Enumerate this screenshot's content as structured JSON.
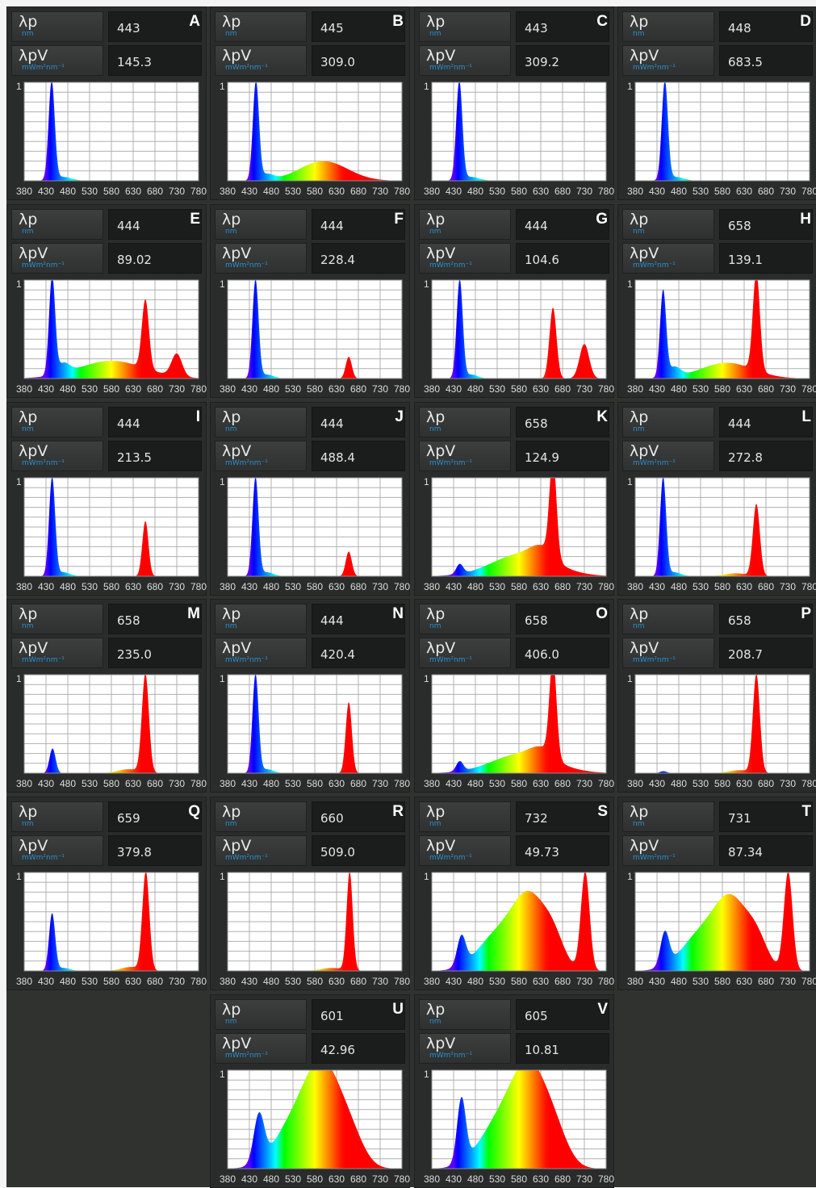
{
  "labels": {
    "lambda_p": "λp",
    "lambda_p_unit": "nm",
    "lambda_pv": "λpV",
    "lambda_pv_unit": "mWm²nm⁻¹"
  },
  "colors": {
    "background": "#303230",
    "panel": "#2a2c2b",
    "plot_background": "#ffffff",
    "grid": "#b0b0b0",
    "unit_text": "#2a8fd0"
  },
  "chart_data": {
    "type": "area",
    "y_tick_label": "1",
    "ylim": [
      0,
      1
    ],
    "xlim": [
      380,
      780
    ],
    "x_ticks": [
      "380",
      "430",
      "480",
      "530",
      "580",
      "630",
      "680",
      "730",
      "780"
    ],
    "panels": [
      {
        "label": "A",
        "lambda_p": "443",
        "lambda_pv": "145.3",
        "peaks": [
          {
            "c": 443,
            "w": 7,
            "h": 1.0
          },
          {
            "c": 468,
            "w": 20,
            "h": 0.04
          }
        ]
      },
      {
        "label": "B",
        "lambda_p": "445",
        "lambda_pv": "309.0",
        "peaks": [
          {
            "c": 445,
            "w": 7,
            "h": 1.0
          },
          {
            "c": 470,
            "w": 15,
            "h": 0.06
          },
          {
            "c": 600,
            "w": 55,
            "h": 0.2
          }
        ]
      },
      {
        "label": "C",
        "lambda_p": "443",
        "lambda_pv": "309.2",
        "peaks": [
          {
            "c": 443,
            "w": 7,
            "h": 1.0
          },
          {
            "c": 468,
            "w": 20,
            "h": 0.04
          }
        ]
      },
      {
        "label": "D",
        "lambda_p": "448",
        "lambda_pv": "683.5",
        "peaks": [
          {
            "c": 448,
            "w": 7,
            "h": 1.0
          },
          {
            "c": 470,
            "w": 20,
            "h": 0.04
          }
        ]
      },
      {
        "label": "E",
        "lambda_p": "444",
        "lambda_pv": "89.02",
        "peaks": [
          {
            "c": 444,
            "w": 7,
            "h": 1.0
          },
          {
            "c": 470,
            "w": 14,
            "h": 0.1
          },
          {
            "c": 580,
            "w": 75,
            "h": 0.18
          },
          {
            "c": 658,
            "w": 8,
            "h": 0.7
          },
          {
            "c": 730,
            "w": 12,
            "h": 0.23
          }
        ]
      },
      {
        "label": "F",
        "lambda_p": "444",
        "lambda_pv": "228.4",
        "peaks": [
          {
            "c": 444,
            "w": 7,
            "h": 1.0
          },
          {
            "c": 470,
            "w": 15,
            "h": 0.04
          },
          {
            "c": 658,
            "w": 7,
            "h": 0.22
          }
        ]
      },
      {
        "label": "G",
        "lambda_p": "444",
        "lambda_pv": "104.6",
        "peaks": [
          {
            "c": 444,
            "w": 7,
            "h": 1.0
          },
          {
            "c": 470,
            "w": 15,
            "h": 0.04
          },
          {
            "c": 658,
            "w": 8,
            "h": 0.72
          },
          {
            "c": 730,
            "w": 11,
            "h": 0.35
          }
        ]
      },
      {
        "label": "H",
        "lambda_p": "658",
        "lambda_pv": "139.1",
        "peaks": [
          {
            "c": 444,
            "w": 7,
            "h": 0.88
          },
          {
            "c": 470,
            "w": 14,
            "h": 0.1
          },
          {
            "c": 590,
            "w": 60,
            "h": 0.16
          },
          {
            "c": 658,
            "w": 8,
            "h": 1.0
          }
        ]
      },
      {
        "label": "I",
        "lambda_p": "444",
        "lambda_pv": "213.5",
        "peaks": [
          {
            "c": 444,
            "w": 7,
            "h": 1.0
          },
          {
            "c": 470,
            "w": 15,
            "h": 0.04
          },
          {
            "c": 658,
            "w": 7,
            "h": 0.56
          }
        ]
      },
      {
        "label": "J",
        "lambda_p": "444",
        "lambda_pv": "488.4",
        "peaks": [
          {
            "c": 444,
            "w": 7,
            "h": 1.0
          },
          {
            "c": 470,
            "w": 15,
            "h": 0.04
          },
          {
            "c": 658,
            "w": 7,
            "h": 0.25
          }
        ]
      },
      {
        "label": "K",
        "lambda_p": "658",
        "lambda_pv": "124.9",
        "peaks": [
          {
            "c": 444,
            "w": 8,
            "h": 0.1
          },
          {
            "c": 590,
            "w": 70,
            "h": 0.23
          },
          {
            "c": 632,
            "w": 25,
            "h": 0.12
          },
          {
            "c": 658,
            "w": 8,
            "h": 1.0
          }
        ]
      },
      {
        "label": "L",
        "lambda_p": "444",
        "lambda_pv": "272.8",
        "peaks": [
          {
            "c": 444,
            "w": 7,
            "h": 1.0
          },
          {
            "c": 470,
            "w": 15,
            "h": 0.04
          },
          {
            "c": 610,
            "w": 25,
            "h": 0.03
          },
          {
            "c": 658,
            "w": 8,
            "h": 0.73
          }
        ]
      },
      {
        "label": "M",
        "lambda_p": "658",
        "lambda_pv": "235.0",
        "peaks": [
          {
            "c": 445,
            "w": 7,
            "h": 0.25
          },
          {
            "c": 620,
            "w": 25,
            "h": 0.04
          },
          {
            "c": 658,
            "w": 8,
            "h": 1.0
          }
        ]
      },
      {
        "label": "N",
        "lambda_p": "444",
        "lambda_pv": "420.4",
        "peaks": [
          {
            "c": 444,
            "w": 7,
            "h": 1.0
          },
          {
            "c": 470,
            "w": 15,
            "h": 0.04
          },
          {
            "c": 658,
            "w": 7,
            "h": 0.72
          }
        ]
      },
      {
        "label": "O",
        "lambda_p": "658",
        "lambda_pv": "406.0",
        "peaks": [
          {
            "c": 444,
            "w": 8,
            "h": 0.1
          },
          {
            "c": 590,
            "w": 70,
            "h": 0.2
          },
          {
            "c": 632,
            "w": 25,
            "h": 0.1
          },
          {
            "c": 658,
            "w": 8,
            "h": 1.0
          }
        ]
      },
      {
        "label": "P",
        "lambda_p": "658",
        "lambda_pv": "208.7",
        "peaks": [
          {
            "c": 445,
            "w": 8,
            "h": 0.02
          },
          {
            "c": 620,
            "w": 25,
            "h": 0.03
          },
          {
            "c": 658,
            "w": 8,
            "h": 1.0
          }
        ]
      },
      {
        "label": "Q",
        "lambda_p": "659",
        "lambda_pv": "379.8",
        "peaks": [
          {
            "c": 444,
            "w": 7,
            "h": 0.58
          },
          {
            "c": 470,
            "w": 15,
            "h": 0.03
          },
          {
            "c": 625,
            "w": 22,
            "h": 0.04
          },
          {
            "c": 659,
            "w": 8,
            "h": 1.0
          }
        ]
      },
      {
        "label": "R",
        "lambda_p": "660",
        "lambda_pv": "509.0",
        "peaks": [
          {
            "c": 620,
            "w": 25,
            "h": 0.03
          },
          {
            "c": 660,
            "w": 7,
            "h": 1.0
          }
        ]
      },
      {
        "label": "S",
        "lambda_p": "732",
        "lambda_pv": "49.73",
        "peaks": [
          {
            "c": 448,
            "w": 10,
            "h": 0.3
          },
          {
            "c": 530,
            "w": 45,
            "h": 0.35
          },
          {
            "c": 605,
            "w": 38,
            "h": 0.7
          },
          {
            "c": 660,
            "w": 25,
            "h": 0.25
          },
          {
            "c": 732,
            "w": 10,
            "h": 1.0
          }
        ]
      },
      {
        "label": "T",
        "lambda_p": "731",
        "lambda_pv": "87.34",
        "peaks": [
          {
            "c": 448,
            "w": 10,
            "h": 0.34
          },
          {
            "c": 530,
            "w": 45,
            "h": 0.35
          },
          {
            "c": 602,
            "w": 38,
            "h": 0.66
          },
          {
            "c": 660,
            "w": 25,
            "h": 0.25
          },
          {
            "c": 731,
            "w": 10,
            "h": 1.0
          }
        ]
      },
      {
        "label": "U",
        "lambda_p": "601",
        "lambda_pv": "42.96",
        "peaks": [
          {
            "c": 452,
            "w": 12,
            "h": 0.48
          },
          {
            "c": 530,
            "w": 45,
            "h": 0.4
          },
          {
            "c": 601,
            "w": 42,
            "h": 0.97
          },
          {
            "c": 665,
            "w": 30,
            "h": 0.22
          }
        ]
      },
      {
        "label": "V",
        "lambda_p": "605",
        "lambda_pv": "10.81",
        "peaks": [
          {
            "c": 448,
            "w": 10,
            "h": 0.65
          },
          {
            "c": 530,
            "w": 45,
            "h": 0.4
          },
          {
            "c": 605,
            "w": 42,
            "h": 0.97
          },
          {
            "c": 665,
            "w": 30,
            "h": 0.22
          }
        ]
      }
    ]
  }
}
